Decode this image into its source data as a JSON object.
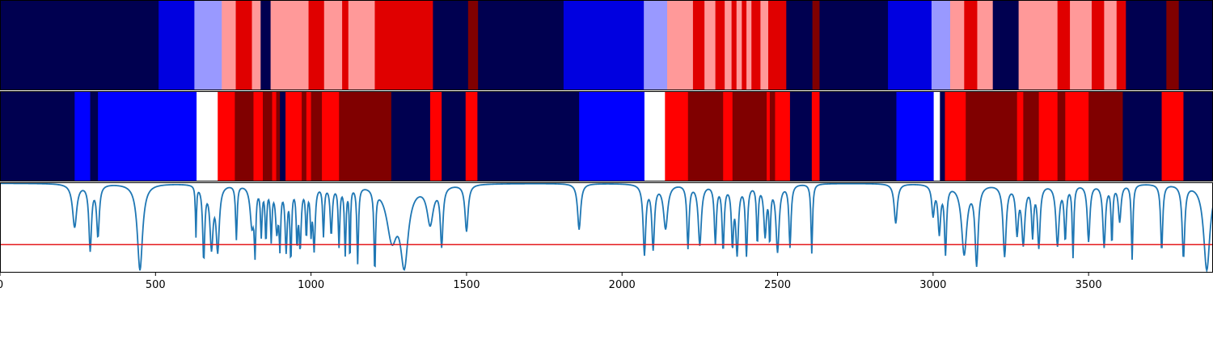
{
  "chart_data": {
    "type": "heatmap",
    "title": "",
    "xlabel": "",
    "ylabel": "",
    "xlim": [
      0,
      3900
    ],
    "x_ticks": [
      0,
      500,
      1000,
      1500,
      2000,
      2500,
      3000,
      3500
    ],
    "x_tick_labels": [
      "0",
      "500",
      "1000",
      "1500",
      "2000",
      "2500",
      "3000",
      "3500"
    ],
    "grid": false,
    "colors": {
      "navy": "#000050",
      "blue_dark": "#0000e0",
      "blue": "#0000ff",
      "blue_light": "#9999ff",
      "white": "#ffffff",
      "red_light": "#ff9999",
      "red": "#ff0000",
      "red_dark": "#e00000",
      "maroon": "#800000",
      "line": "#1f77b4",
      "threshold_line": "#e41a1c",
      "frame": "#000000"
    },
    "state_bands": [
      {
        "name": "",
        "segments": [
          {
            "x0": 0,
            "x1": 510,
            "color": "navy"
          },
          {
            "x0": 510,
            "x1": 625,
            "color": "blue_dark"
          },
          {
            "x0": 625,
            "x1": 713,
            "color": "blue_light"
          },
          {
            "x0": 713,
            "x1": 758,
            "color": "red_light"
          },
          {
            "x0": 758,
            "x1": 810,
            "color": "red_dark"
          },
          {
            "x0": 810,
            "x1": 838,
            "color": "red_light"
          },
          {
            "x0": 838,
            "x1": 870,
            "color": "navy"
          },
          {
            "x0": 870,
            "x1": 992,
            "color": "red_light"
          },
          {
            "x0": 992,
            "x1": 1042,
            "color": "red_dark"
          },
          {
            "x0": 1042,
            "x1": 1100,
            "color": "red_light"
          },
          {
            "x0": 1100,
            "x1": 1120,
            "color": "red_dark"
          },
          {
            "x0": 1120,
            "x1": 1205,
            "color": "red_light"
          },
          {
            "x0": 1205,
            "x1": 1392,
            "color": "red_dark"
          },
          {
            "x0": 1392,
            "x1": 1505,
            "color": "navy"
          },
          {
            "x0": 1505,
            "x1": 1537,
            "color": "maroon"
          },
          {
            "x0": 1537,
            "x1": 1812,
            "color": "navy"
          },
          {
            "x0": 1812,
            "x1": 2070,
            "color": "blue_dark"
          },
          {
            "x0": 2070,
            "x1": 2145,
            "color": "blue_light"
          },
          {
            "x0": 2145,
            "x1": 2228,
            "color": "red_light"
          },
          {
            "x0": 2228,
            "x1": 2265,
            "color": "red_dark"
          },
          {
            "x0": 2265,
            "x1": 2300,
            "color": "red_light"
          },
          {
            "x0": 2300,
            "x1": 2330,
            "color": "red_dark"
          },
          {
            "x0": 2330,
            "x1": 2352,
            "color": "red_light"
          },
          {
            "x0": 2352,
            "x1": 2368,
            "color": "red_dark"
          },
          {
            "x0": 2368,
            "x1": 2385,
            "color": "red_light"
          },
          {
            "x0": 2385,
            "x1": 2400,
            "color": "red_dark"
          },
          {
            "x0": 2400,
            "x1": 2416,
            "color": "red_light"
          },
          {
            "x0": 2416,
            "x1": 2445,
            "color": "red_dark"
          },
          {
            "x0": 2445,
            "x1": 2470,
            "color": "red_light"
          },
          {
            "x0": 2470,
            "x1": 2528,
            "color": "red_dark"
          },
          {
            "x0": 2528,
            "x1": 2612,
            "color": "navy"
          },
          {
            "x0": 2612,
            "x1": 2635,
            "color": "maroon"
          },
          {
            "x0": 2635,
            "x1": 2855,
            "color": "navy"
          },
          {
            "x0": 2855,
            "x1": 2995,
            "color": "blue_dark"
          },
          {
            "x0": 2995,
            "x1": 3055,
            "color": "blue_light"
          },
          {
            "x0": 3055,
            "x1": 3100,
            "color": "red_light"
          },
          {
            "x0": 3100,
            "x1": 3142,
            "color": "red_dark"
          },
          {
            "x0": 3142,
            "x1": 3192,
            "color": "red_light"
          },
          {
            "x0": 3192,
            "x1": 3275,
            "color": "navy"
          },
          {
            "x0": 3275,
            "x1": 3400,
            "color": "red_light"
          },
          {
            "x0": 3400,
            "x1": 3440,
            "color": "red_dark"
          },
          {
            "x0": 3440,
            "x1": 3510,
            "color": "red_light"
          },
          {
            "x0": 3510,
            "x1": 3550,
            "color": "red_dark"
          },
          {
            "x0": 3550,
            "x1": 3590,
            "color": "red_light"
          },
          {
            "x0": 3590,
            "x1": 3620,
            "color": "red_dark"
          },
          {
            "x0": 3620,
            "x1": 3750,
            "color": "navy"
          },
          {
            "x0": 3750,
            "x1": 3790,
            "color": "maroon"
          },
          {
            "x0": 3790,
            "x1": 3900,
            "color": "navy"
          }
        ]
      },
      {
        "name": "",
        "segments": [
          {
            "x0": 0,
            "x1": 240,
            "color": "navy"
          },
          {
            "x0": 240,
            "x1": 290,
            "color": "blue"
          },
          {
            "x0": 290,
            "x1": 315,
            "color": "navy"
          },
          {
            "x0": 315,
            "x1": 632,
            "color": "blue"
          },
          {
            "x0": 632,
            "x1": 700,
            "color": "white"
          },
          {
            "x0": 700,
            "x1": 755,
            "color": "red"
          },
          {
            "x0": 755,
            "x1": 815,
            "color": "maroon"
          },
          {
            "x0": 815,
            "x1": 845,
            "color": "red"
          },
          {
            "x0": 845,
            "x1": 875,
            "color": "maroon"
          },
          {
            "x0": 875,
            "x1": 888,
            "color": "red"
          },
          {
            "x0": 888,
            "x1": 900,
            "color": "maroon"
          },
          {
            "x0": 900,
            "x1": 918,
            "color": "navy"
          },
          {
            "x0": 918,
            "x1": 970,
            "color": "red"
          },
          {
            "x0": 970,
            "x1": 985,
            "color": "maroon"
          },
          {
            "x0": 985,
            "x1": 1000,
            "color": "red"
          },
          {
            "x0": 1000,
            "x1": 1035,
            "color": "maroon"
          },
          {
            "x0": 1035,
            "x1": 1090,
            "color": "red"
          },
          {
            "x0": 1090,
            "x1": 1258,
            "color": "maroon"
          },
          {
            "x0": 1258,
            "x1": 1383,
            "color": "navy"
          },
          {
            "x0": 1383,
            "x1": 1420,
            "color": "red"
          },
          {
            "x0": 1420,
            "x1": 1497,
            "color": "navy"
          },
          {
            "x0": 1497,
            "x1": 1535,
            "color": "red"
          },
          {
            "x0": 1535,
            "x1": 1862,
            "color": "navy"
          },
          {
            "x0": 1862,
            "x1": 2072,
            "color": "blue"
          },
          {
            "x0": 2072,
            "x1": 2138,
            "color": "white"
          },
          {
            "x0": 2138,
            "x1": 2212,
            "color": "red"
          },
          {
            "x0": 2212,
            "x1": 2325,
            "color": "maroon"
          },
          {
            "x0": 2325,
            "x1": 2355,
            "color": "red"
          },
          {
            "x0": 2355,
            "x1": 2465,
            "color": "maroon"
          },
          {
            "x0": 2465,
            "x1": 2475,
            "color": "red"
          },
          {
            "x0": 2475,
            "x1": 2492,
            "color": "maroon"
          },
          {
            "x0": 2492,
            "x1": 2540,
            "color": "red"
          },
          {
            "x0": 2540,
            "x1": 2610,
            "color": "navy"
          },
          {
            "x0": 2610,
            "x1": 2635,
            "color": "red"
          },
          {
            "x0": 2635,
            "x1": 2882,
            "color": "navy"
          },
          {
            "x0": 2882,
            "x1": 3002,
            "color": "blue"
          },
          {
            "x0": 3002,
            "x1": 3022,
            "color": "white"
          },
          {
            "x0": 3022,
            "x1": 3038,
            "color": "navy"
          },
          {
            "x0": 3038,
            "x1": 3105,
            "color": "red"
          },
          {
            "x0": 3105,
            "x1": 3270,
            "color": "maroon"
          },
          {
            "x0": 3270,
            "x1": 3290,
            "color": "red"
          },
          {
            "x0": 3290,
            "x1": 3340,
            "color": "maroon"
          },
          {
            "x0": 3340,
            "x1": 3400,
            "color": "red"
          },
          {
            "x0": 3400,
            "x1": 3425,
            "color": "maroon"
          },
          {
            "x0": 3425,
            "x1": 3500,
            "color": "red"
          },
          {
            "x0": 3500,
            "x1": 3610,
            "color": "maroon"
          },
          {
            "x0": 3610,
            "x1": 3735,
            "color": "navy"
          },
          {
            "x0": 3735,
            "x1": 3805,
            "color": "red"
          },
          {
            "x0": 3805,
            "x1": 3900,
            "color": "navy"
          }
        ]
      }
    ],
    "signal": {
      "name": "",
      "ylim": [
        0,
        1
      ],
      "baseline": 0.99,
      "threshold": 0.31,
      "dips": [
        [
          240,
          0.51,
          8
        ],
        [
          290,
          0.27,
          5
        ],
        [
          315,
          0.42,
          5
        ],
        [
          450,
          0.03,
          10
        ],
        [
          630,
          0.43,
          2
        ],
        [
          655,
          0.18,
          4
        ],
        [
          680,
          0.32,
          6
        ],
        [
          700,
          0.28,
          6
        ],
        [
          760,
          0.39,
          3
        ],
        [
          810,
          0.55,
          7
        ],
        [
          820,
          0.32,
          3
        ],
        [
          840,
          0.46,
          3
        ],
        [
          855,
          0.4,
          3
        ],
        [
          872,
          0.41,
          3
        ],
        [
          890,
          0.51,
          5
        ],
        [
          900,
          0.37,
          3
        ],
        [
          920,
          0.29,
          4
        ],
        [
          935,
          0.2,
          3
        ],
        [
          955,
          0.4,
          3
        ],
        [
          965,
          0.33,
          4
        ],
        [
          985,
          0.45,
          3
        ],
        [
          1000,
          0.52,
          3
        ],
        [
          1010,
          0.3,
          4
        ],
        [
          1040,
          0.44,
          3
        ],
        [
          1065,
          0.45,
          4
        ],
        [
          1090,
          0.33,
          3
        ],
        [
          1110,
          0.24,
          3
        ],
        [
          1125,
          0.12,
          2
        ],
        [
          1150,
          0.14,
          3
        ],
        [
          1205,
          0.08,
          3
        ],
        [
          1260,
          0.42,
          20
        ],
        [
          1300,
          0.16,
          15
        ],
        [
          1383,
          0.57,
          12
        ],
        [
          1420,
          0.34,
          5
        ],
        [
          1500,
          0.47,
          6
        ],
        [
          1862,
          0.48,
          6
        ],
        [
          2072,
          0.22,
          5
        ],
        [
          2100,
          0.29,
          5
        ],
        [
          2140,
          0.5,
          8
        ],
        [
          2212,
          0.29,
          4
        ],
        [
          2250,
          0.32,
          6
        ],
        [
          2300,
          0.35,
          4
        ],
        [
          2325,
          0.28,
          4
        ],
        [
          2355,
          0.35,
          4
        ],
        [
          2370,
          0.25,
          5
        ],
        [
          2400,
          0.22,
          4
        ],
        [
          2435,
          0.34,
          3
        ],
        [
          2460,
          0.44,
          5
        ],
        [
          2475,
          0.4,
          3
        ],
        [
          2500,
          0.25,
          6
        ],
        [
          2540,
          0.3,
          4
        ],
        [
          2610,
          0.22,
          3
        ],
        [
          2880,
          0.55,
          6
        ],
        [
          3000,
          0.66,
          5
        ],
        [
          3020,
          0.47,
          5
        ],
        [
          3040,
          0.25,
          4
        ],
        [
          3100,
          0.22,
          10
        ],
        [
          3140,
          0.12,
          6
        ],
        [
          3230,
          0.2,
          6
        ],
        [
          3270,
          0.48,
          5
        ],
        [
          3290,
          0.35,
          6
        ],
        [
          3320,
          0.45,
          4
        ],
        [
          3340,
          0.31,
          5
        ],
        [
          3400,
          0.32,
          6
        ],
        [
          3425,
          0.4,
          4
        ],
        [
          3450,
          0.2,
          3
        ],
        [
          3500,
          0.36,
          5
        ],
        [
          3550,
          0.3,
          5
        ],
        [
          3575,
          0.35,
          3
        ],
        [
          3600,
          0.58,
          5
        ],
        [
          3640,
          0.16,
          3
        ],
        [
          3735,
          0.25,
          4
        ],
        [
          3805,
          0.18,
          5
        ],
        [
          3880,
          0.03,
          12
        ]
      ]
    }
  }
}
